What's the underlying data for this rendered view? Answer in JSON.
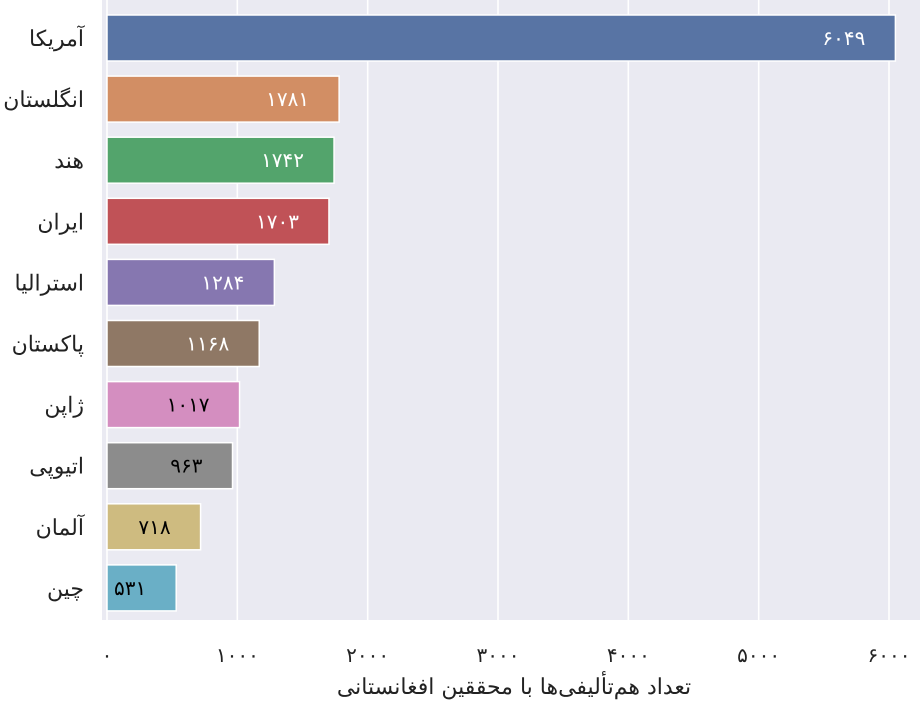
{
  "chart_data": {
    "type": "bar",
    "orientation": "horizontal",
    "title": "",
    "xlabel": "تعداد هم‌تألیفی‌ها با محققین افغانستانی",
    "ylabel": "",
    "xlim": [
      0,
      6000
    ],
    "xticks": [
      0,
      1000,
      2000,
      3000,
      4000,
      5000,
      6000
    ],
    "xtick_labels": [
      "۰",
      "۱۰۰۰",
      "۲۰۰۰",
      "۳۰۰۰",
      "۴۰۰۰",
      "۵۰۰۰",
      "۶۰۰۰"
    ],
    "grid": true,
    "background": "#eaeaf2",
    "categories": [
      "آمریکا",
      "انگلستان",
      "هند",
      "ایران",
      "استرالیا",
      "پاکستان",
      "ژاپن",
      "اتیوپی",
      "آلمان",
      "چین"
    ],
    "values": [
      6049,
      1781,
      1742,
      1703,
      1284,
      1168,
      1017,
      963,
      718,
      531
    ],
    "value_labels": [
      "۶۰۴۹",
      "۱۷۸۱",
      "۱۷۴۲",
      "۱۷۰۳",
      "۱۲۸۴",
      "۱۱۶۸",
      "۱۰۱۷",
      "۹۶۳",
      "۷۱۸",
      "۵۳۱"
    ],
    "colors": [
      "#5874a4",
      "#d28e64",
      "#53a46c",
      "#c05257",
      "#8677b0",
      "#8f7865",
      "#d48ec0",
      "#8c8c8c",
      "#cebb80",
      "#6aafc6"
    ],
    "label_colors": [
      "#ffffff",
      "#ffffff",
      "#ffffff",
      "#ffffff",
      "#ffffff",
      "#ffffff",
      "#000000",
      "#000000",
      "#000000",
      "#000000"
    ]
  }
}
